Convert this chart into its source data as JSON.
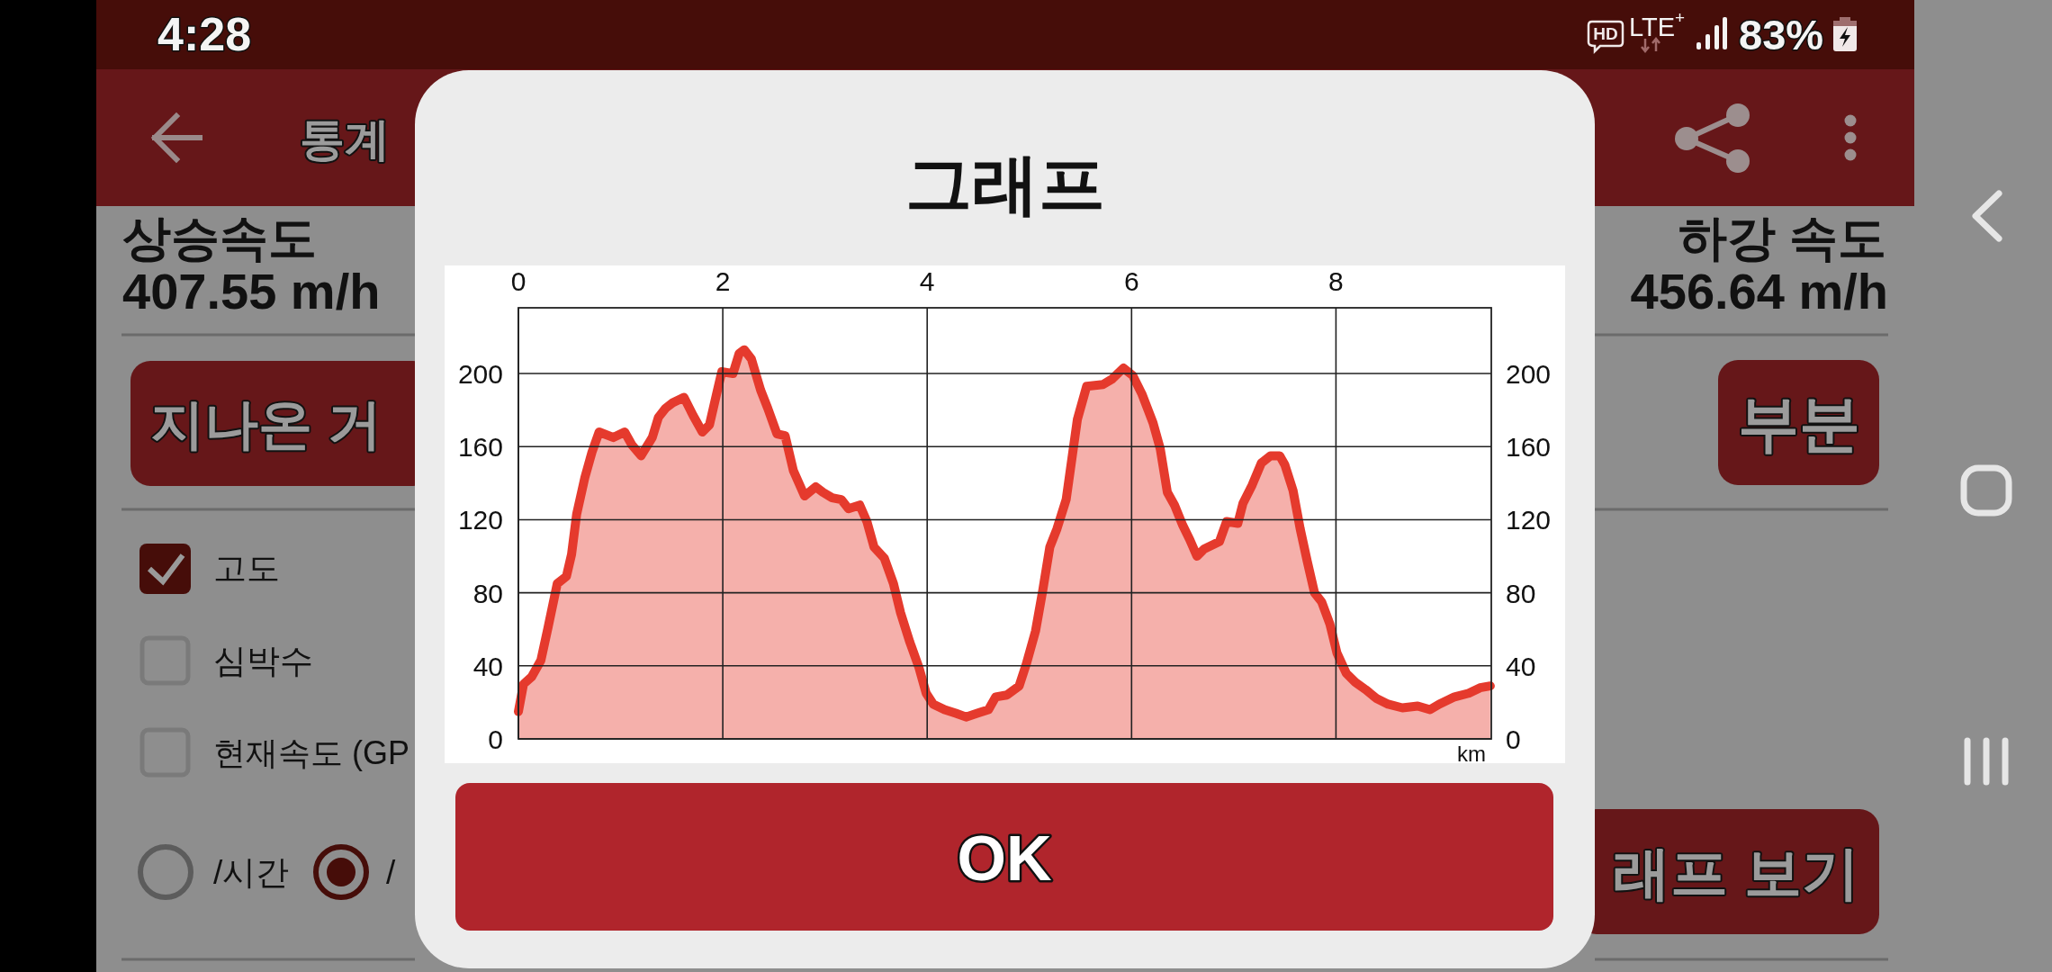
{
  "chart_data": {
    "type": "area",
    "title": "그래프",
    "xlabel": "km",
    "x": [
      0,
      0.05,
      0.13,
      0.22,
      0.29,
      0.38,
      0.47,
      0.52,
      0.57,
      0.65,
      0.72,
      0.79,
      0.93,
      1.04,
      1.11,
      1.2,
      1.31,
      1.37,
      1.44,
      1.51,
      1.62,
      1.71,
      1.8,
      1.87,
      1.94,
      1.99,
      2.1,
      2.16,
      2.21,
      2.28,
      2.37,
      2.44,
      2.53,
      2.61,
      2.69,
      2.8,
      2.91,
      2.98,
      3.07,
      3.16,
      3.23,
      3.34,
      3.41,
      3.48,
      3.58,
      3.67,
      3.74,
      3.83,
      3.92,
      3.99,
      4.06,
      4.17,
      4.28,
      4.38,
      4.49,
      4.6,
      4.67,
      4.78,
      4.9,
      4.97,
      5.06,
      5.13,
      5.2,
      5.27,
      5.36,
      5.42,
      5.47,
      5.56,
      5.72,
      5.81,
      5.92,
      6.01,
      6.1,
      6.21,
      6.28,
      6.35,
      6.42,
      6.5,
      6.57,
      6.64,
      6.71,
      6.86,
      6.93,
      7.04,
      7.09,
      7.18,
      7.27,
      7.36,
      7.45,
      7.5,
      7.58,
      7.65,
      7.72,
      7.79,
      7.86,
      7.94,
      8.01,
      8.1,
      8.19,
      8.29,
      8.4,
      8.51,
      8.65,
      8.8,
      8.92,
      9.01,
      9.16,
      9.3,
      9.41,
      9.51
    ],
    "values": [
      15,
      30,
      34,
      43,
      61,
      85,
      89,
      101,
      123,
      143,
      157,
      168,
      165,
      168,
      161,
      155,
      165,
      176,
      181,
      184,
      187,
      177,
      168,
      172,
      189,
      201,
      200,
      211,
      213,
      208,
      191,
      181,
      167,
      166,
      147,
      133,
      138,
      135,
      132,
      131,
      126,
      128,
      119,
      105,
      99,
      85,
      69,
      53,
      39,
      25,
      19,
      16,
      14,
      12,
      14,
      16,
      23,
      24,
      29,
      41,
      59,
      81,
      105,
      115,
      131,
      155,
      175,
      193,
      194,
      197,
      203,
      199,
      189,
      173,
      159,
      135,
      128,
      117,
      109,
      100,
      104,
      108,
      119,
      118,
      129,
      139,
      151,
      155,
      155,
      150,
      136,
      115,
      97,
      80,
      75,
      63,
      47,
      36,
      31,
      27,
      22,
      19,
      17,
      18,
      16,
      19,
      23,
      25,
      28,
      29
    ],
    "color": "#e53a2d",
    "xlim": [
      0,
      9.52
    ],
    "xticks": [
      0,
      2,
      4,
      6,
      8
    ],
    "ylim": [
      0,
      236
    ],
    "yticks": [
      0,
      40,
      80,
      120,
      160,
      200
    ],
    "y2lim": [
      0,
      236
    ],
    "y2ticks": [
      0,
      40,
      80,
      120,
      160,
      200
    ],
    "grid": true,
    "annotations": [
      "4:28",
      "HD",
      "LTE$^{+}$",
      "83%",
      "통계",
      "상승속도",
      "407.55 m/h",
      "하강 속도",
      "456.64 m/h",
      "지나온 거",
      "부분",
      "고도",
      "심박수",
      "현재속도 (GP",
      "/시간",
      "/",
      "래프 보기",
      "OK"
    ]
  }
}
